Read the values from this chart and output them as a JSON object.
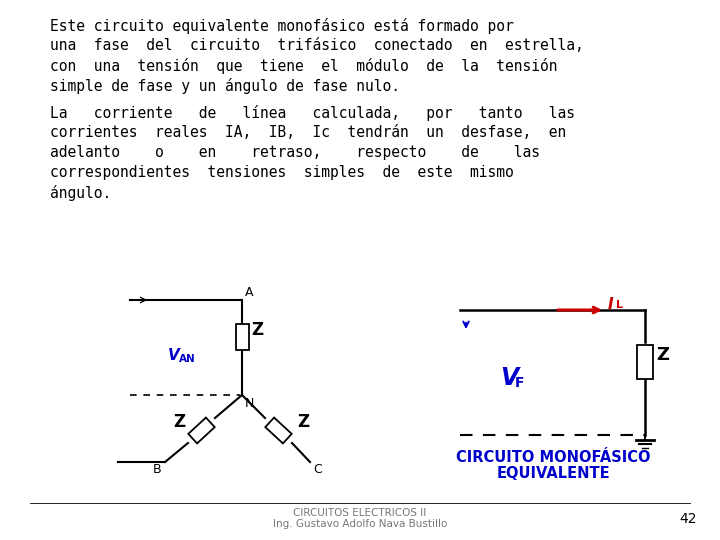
{
  "background_color": "#ffffff",
  "text_color": "#000000",
  "blue_color": "#0000cc",
  "red_color": "#cc0000",
  "footer_line1": "CIRCUITOS ELECTRICOS II",
  "footer_line2": "Ing. Gustavo Adolfo Nava Bustillo",
  "page_num": "42"
}
